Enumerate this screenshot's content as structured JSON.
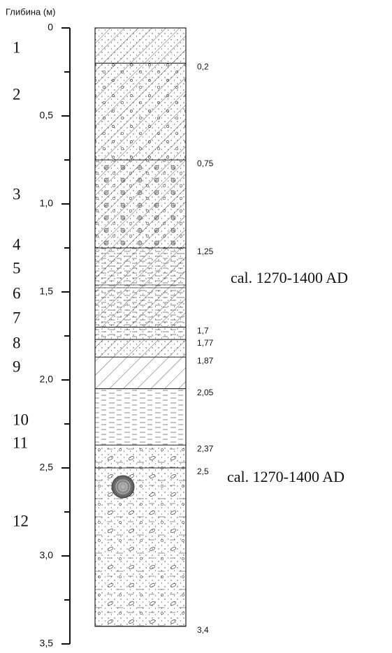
{
  "chart_data": {
    "type": "column",
    "ylabel": "Глибина (м)",
    "ylim": [
      0,
      3.5
    ],
    "yticks": [
      0,
      {
        "value": 0.5,
        "label": "0,5"
      },
      {
        "value": 1.0,
        "label": "1,0"
      },
      {
        "value": 1.5,
        "label": "1,5"
      },
      {
        "value": 2.0,
        "label": "2,0"
      },
      {
        "value": 2.5,
        "label": "2,5"
      },
      {
        "value": 3.0,
        "label": "3,0"
      },
      {
        "value": 3.5,
        "label": "3,5"
      }
    ],
    "minor_yticks": [
      0.25,
      0.75,
      1.25,
      1.75,
      2.25,
      2.75,
      3.25
    ],
    "boundaries": [
      {
        "value": 0.2,
        "label": "0,2"
      },
      {
        "value": 0.75,
        "label": "0,75"
      },
      {
        "value": 1.25,
        "label": "1,25"
      },
      {
        "value": 1.7,
        "label": "1,7"
      },
      {
        "value": 1.77,
        "label": "1,77"
      },
      {
        "value": 1.87,
        "label": "1,87"
      },
      {
        "value": 2.05,
        "label": "2,05"
      },
      {
        "value": 2.37,
        "label": "2,37"
      },
      {
        "value": 2.5,
        "label": "2,5"
      },
      {
        "value": 3.4,
        "label": "3,4"
      }
    ],
    "layers": [
      "1",
      "2",
      "3",
      "4",
      "5",
      "6",
      "7",
      "8",
      "9",
      "10",
      "11",
      "12"
    ],
    "annotations": [
      "cal. 1270-1400 AD",
      "cal. 1270-1400 AD"
    ]
  }
}
